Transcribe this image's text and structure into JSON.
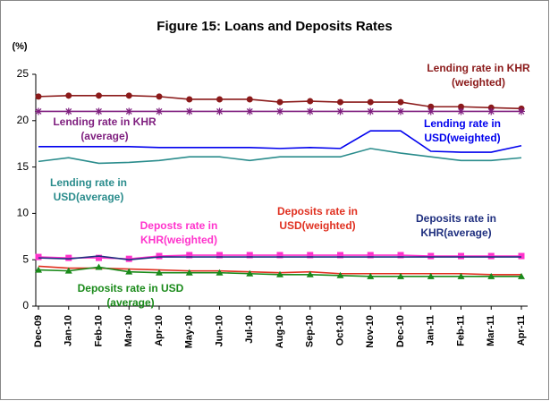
{
  "chart_data": {
    "type": "line",
    "title": "Figure 15: Loans and Deposits Rates",
    "y_label": "(%)",
    "categories": [
      "Dec-09",
      "Jan-10",
      "Feb-10",
      "Mar-10",
      "Apr-10",
      "May-10",
      "Jun-10",
      "Jul-10",
      "Aug-10",
      "Sep-10",
      "Oct-10",
      "Nov-10",
      "Dec-10",
      "Jan-11",
      "Feb-11",
      "Mar-11",
      "Apr-11"
    ],
    "ylim": [
      0,
      25
    ],
    "yticks": [
      0,
      5,
      10,
      15,
      20,
      25
    ],
    "grid": false,
    "series": [
      {
        "name": "Lending rate in KHR\n(weighted)",
        "color": "#8b1a1a",
        "marker": "circle",
        "values": [
          22.6,
          22.7,
          22.7,
          22.7,
          22.6,
          22.3,
          22.3,
          22.3,
          22.0,
          22.1,
          22.0,
          22.0,
          22.0,
          21.5,
          21.5,
          21.4,
          21.3
        ]
      },
      {
        "name": "Lending rate in KHR\n(average)",
        "color": "#7f1f7f",
        "marker": "asterisk",
        "values": [
          21.0,
          21.0,
          21.0,
          21.0,
          21.0,
          21.0,
          21.0,
          21.0,
          21.0,
          21.0,
          21.0,
          21.0,
          21.0,
          21.0,
          21.0,
          21.0,
          21.0
        ]
      },
      {
        "name": "Lending rate in\nUSD(weighted)",
        "color": "#0000ee",
        "marker": "none",
        "values": [
          17.2,
          17.2,
          17.2,
          17.2,
          17.1,
          17.1,
          17.1,
          17.1,
          17.0,
          17.1,
          17.0,
          18.9,
          18.9,
          16.7,
          16.6,
          16.6,
          17.3
        ]
      },
      {
        "name": "Lending rate in\nUSD(average)",
        "color": "#2a8c8c",
        "marker": "none",
        "values": [
          15.6,
          16.0,
          15.4,
          15.5,
          15.7,
          16.1,
          16.1,
          15.7,
          16.1,
          16.1,
          16.1,
          17.0,
          16.5,
          16.1,
          15.7,
          15.7,
          16.0
        ]
      },
      {
        "name": "Deposts rate in\nKHR(weighted)",
        "color": "#ff33cc",
        "marker": "square",
        "values": [
          5.3,
          5.2,
          5.2,
          5.1,
          5.4,
          5.5,
          5.5,
          5.5,
          5.5,
          5.5,
          5.5,
          5.5,
          5.5,
          5.4,
          5.4,
          5.4,
          5.4
        ]
      },
      {
        "name": "Deposits rate in\nUSD(weighted)",
        "color": "#e03020",
        "marker": "none",
        "values": [
          4.3,
          4.1,
          4.1,
          4.0,
          3.9,
          3.8,
          3.8,
          3.7,
          3.6,
          3.7,
          3.5,
          3.5,
          3.5,
          3.5,
          3.5,
          3.4,
          3.4
        ]
      },
      {
        "name": "Deposits rate in\nKHR(average)",
        "color": "#1f2f7f",
        "marker": "none",
        "values": [
          5.2,
          5.1,
          5.4,
          5.0,
          5.3,
          5.3,
          5.3,
          5.3,
          5.3,
          5.3,
          5.3,
          5.3,
          5.3,
          5.3,
          5.3,
          5.3,
          5.3
        ]
      },
      {
        "name": "Deposits rate in USD\n(average)",
        "color": "#1a8a1a",
        "marker": "triangle",
        "values": [
          3.9,
          3.8,
          4.2,
          3.7,
          3.6,
          3.6,
          3.6,
          3.5,
          3.4,
          3.4,
          3.3,
          3.2,
          3.2,
          3.2,
          3.2,
          3.2,
          3.2
        ]
      }
    ]
  }
}
